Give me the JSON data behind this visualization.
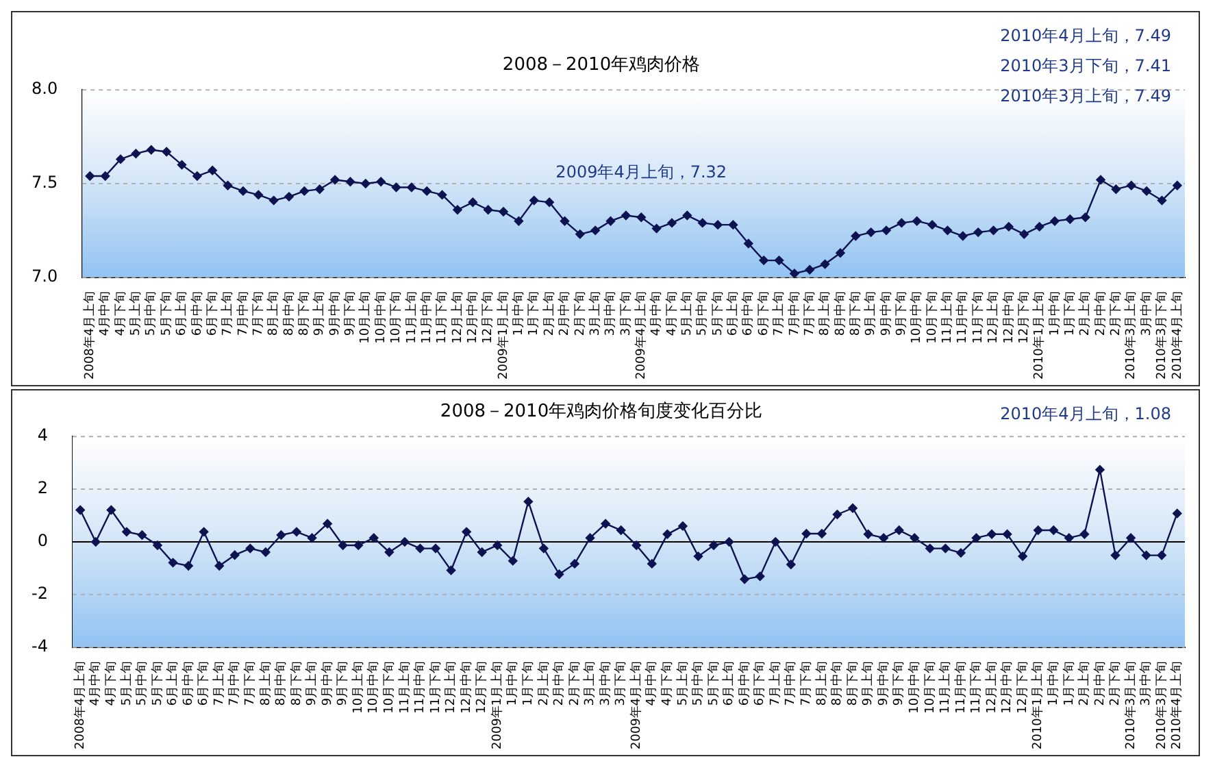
{
  "chart_data": [
    {
      "type": "line",
      "title": "2008－2010年鸡肉价格",
      "categories": [
        "2008年4月上旬",
        "4月中旬",
        "4月下旬",
        "5月上旬",
        "5月中旬",
        "5月下旬",
        "6月上旬",
        "6月中旬",
        "6月下旬",
        "7月上旬",
        "7月中旬",
        "7月下旬",
        "8月上旬",
        "8月中旬",
        "8月下旬",
        "9月上旬",
        "9月中旬",
        "9月下旬",
        "10月上旬",
        "10月中旬",
        "10月下旬",
        "11月上旬",
        "11月中旬",
        "11月下旬",
        "12月上旬",
        "12月中旬",
        "12月下旬",
        "2009年1月上旬",
        "1月中旬",
        "1月下旬",
        "2月上旬",
        "2月中旬",
        "2月下旬",
        "3月上旬",
        "3月中旬",
        "3月下旬",
        "2009年4月上旬",
        "4月中旬",
        "4月下旬",
        "5月上旬",
        "5月中旬",
        "5月下旬",
        "6月上旬",
        "6月中旬",
        "6月下旬",
        "7月上旬",
        "7月中旬",
        "7月下旬",
        "8月上旬",
        "8月中旬",
        "8月下旬",
        "9月上旬",
        "9月中旬",
        "9月下旬",
        "10月中旬",
        "10月下旬",
        "11月上旬",
        "11月中旬",
        "11月下旬",
        "12月上旬",
        "12月中旬",
        "12月下旬",
        "2010年1月上旬",
        "1月中旬",
        "1月下旬",
        "2月上旬",
        "2月中旬",
        "2月下旬",
        "2010年3月上旬",
        "3月中旬",
        "2010年3月下旬",
        "2010年4月上旬"
      ],
      "values": [
        7.54,
        7.54,
        7.63,
        7.66,
        7.68,
        7.67,
        7.6,
        7.54,
        7.57,
        7.49,
        7.46,
        7.44,
        7.41,
        7.43,
        7.46,
        7.47,
        7.52,
        7.51,
        7.5,
        7.51,
        7.48,
        7.48,
        7.46,
        7.44,
        7.36,
        7.4,
        7.36,
        7.35,
        7.3,
        7.41,
        7.4,
        7.3,
        7.23,
        7.25,
        7.3,
        7.33,
        7.32,
        7.26,
        7.29,
        7.33,
        7.29,
        7.28,
        7.28,
        7.18,
        7.09,
        7.09,
        7.02,
        7.04,
        7.07,
        7.13,
        7.22,
        7.24,
        7.25,
        7.29,
        7.3,
        7.28,
        7.25,
        7.22,
        7.24,
        7.25,
        7.27,
        7.23,
        7.27,
        7.3,
        7.31,
        7.32,
        7.52,
        7.47,
        7.49,
        7.46,
        7.41,
        7.49
      ],
      "color": "#0d1350",
      "marker": "diamond",
      "line_style": "solid",
      "ylim": [
        7,
        8
      ],
      "yticks": [
        {
          "value": 7,
          "label": "7.0"
        },
        7.5,
        {
          "value": 8,
          "label": "8.0"
        }
      ],
      "grid": "y",
      "legend": false,
      "annotations": [
        {
          "text": "2009年4月上旬，7.32",
          "x": "2009年4月上旬",
          "y": 7.32
        },
        "2010年4月上旬，7.49",
        "2010年3月下旬，7.41",
        "2010年3月上旬，7.49"
      ]
    },
    {
      "type": "line",
      "title": "2008－2010年鸡肉价格旬度变化百分比",
      "categories": [
        "2008年4月上旬",
        "4月中旬",
        "4月下旬",
        "5月上旬",
        "5月中旬",
        "5月下旬",
        "6月上旬",
        "6月中旬",
        "6月下旬",
        "7月上旬",
        "7月中旬",
        "7月下旬",
        "8月上旬",
        "8月中旬",
        "8月下旬",
        "9月上旬",
        "9月中旬",
        "9月下旬",
        "10月上旬",
        "10月中旬",
        "10月下旬",
        "11月上旬",
        "11月中旬",
        "11月下旬",
        "12月上旬",
        "12月中旬",
        "12月下旬",
        "2009年1月上旬",
        "1月中旬",
        "1月下旬",
        "2月上旬",
        "2月中旬",
        "2月下旬",
        "3月上旬",
        "3月中旬",
        "3月下旬",
        "2009年4月上旬",
        "4月中旬",
        "4月下旬",
        "5月上旬",
        "5月中旬",
        "5月下旬",
        "6月上旬",
        "6月中旬",
        "6月下旬",
        "7月上旬",
        "7月中旬",
        "7月下旬",
        "8月上旬",
        "8月中旬",
        "8月下旬",
        "9月上旬",
        "9月中旬",
        "9月下旬",
        "10月中旬",
        "10月下旬",
        "11月上旬",
        "11月中旬",
        "11月下旬",
        "12月上旬",
        "12月中旬",
        "12月下旬",
        "2010年1月上旬",
        "1月中旬",
        "1月下旬",
        "2月上旬",
        "2月中旬",
        "2月下旬",
        "2010年3月上旬",
        "3月中旬",
        "2010年3月下旬",
        "2010年4月上旬"
      ],
      "values": [
        1.21,
        0,
        1.21,
        0.38,
        0.26,
        -0.13,
        -0.79,
        -0.91,
        0.38,
        -0.91,
        -0.5,
        -0.25,
        -0.39,
        0.26,
        0.38,
        0.15,
        0.69,
        -0.13,
        -0.13,
        0.15,
        -0.39,
        0,
        -0.25,
        -0.25,
        -1.08,
        0.38,
        -0.39,
        -0.13,
        -0.72,
        1.53,
        -0.25,
        -1.23,
        -0.83,
        0.15,
        0.69,
        0.44,
        -0.13,
        -0.83,
        0.29,
        0.6,
        -0.55,
        -0.13,
        0,
        -1.42,
        -1.31,
        0,
        -0.86,
        0.31,
        0.31,
        1.04,
        1.28,
        0.29,
        0.15,
        0.44,
        0.15,
        -0.25,
        -0.25,
        -0.42,
        0.15,
        0.29,
        0.29,
        -0.55,
        0.44,
        0.44,
        0.15,
        0.29,
        2.74,
        -0.51,
        0.15,
        -0.51,
        -0.51,
        1.08
      ],
      "color": "#0d1350",
      "marker": "diamond",
      "line_style": "solid",
      "ylim": [
        -4,
        4
      ],
      "yticks": [
        -4,
        -2,
        0,
        2,
        4
      ],
      "grid": "y",
      "legend": false,
      "annotations": [
        "2010年4月上旬，1.08"
      ]
    }
  ]
}
